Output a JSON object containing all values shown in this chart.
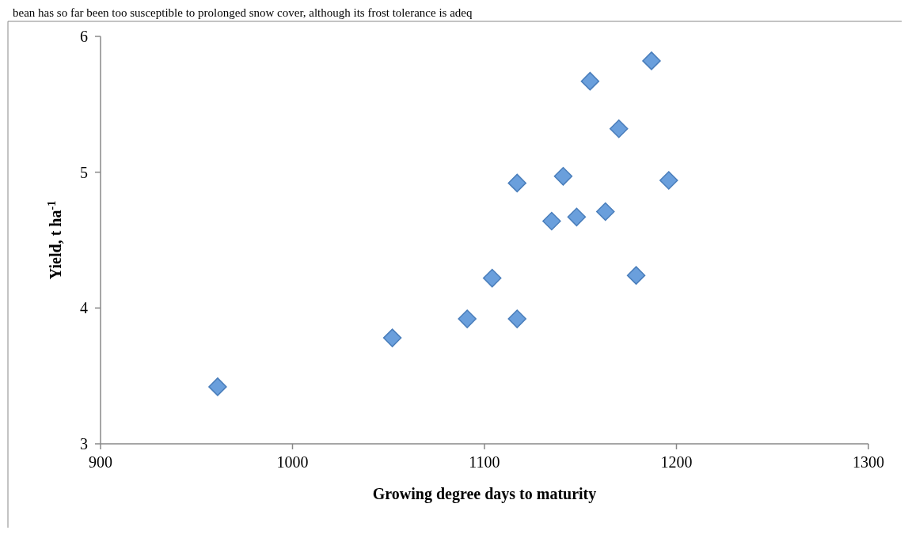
{
  "chart_data": {
    "type": "scatter",
    "xlabel": "Growing degree days to maturity",
    "ylabel": "Yield, t ha$^{-1}$",
    "annotations": [
      "bean has so far been too susceptible to prolonged snow cover, although its frost tolerance is adeq"
    ],
    "x": [
      961,
      1052,
      1091,
      1104,
      1117,
      1117,
      1135,
      1141,
      1148,
      1155,
      1163,
      1170,
      1179,
      1187,
      1196
    ],
    "series": [
      {
        "color": "#6a9fdc",
        "values": [
          3.42,
          3.78,
          3.92,
          4.22,
          3.92,
          4.92,
          4.64,
          4.97,
          4.67,
          5.67,
          4.71,
          5.32,
          4.24,
          5.82,
          4.94
        ]
      }
    ],
    "xlim": [
      900,
      1300
    ],
    "xticks": [
      900,
      1000,
      1100,
      1200,
      1300
    ],
    "ylim": [
      3,
      6
    ],
    "yticks": [
      3,
      4,
      5,
      6
    ],
    "marker": "diamond"
  }
}
